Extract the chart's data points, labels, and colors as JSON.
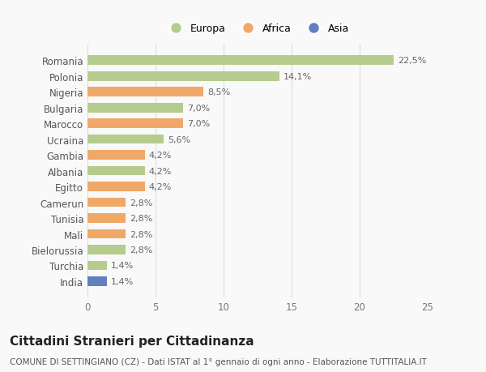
{
  "countries": [
    "Romania",
    "Polonia",
    "Nigeria",
    "Bulgaria",
    "Marocco",
    "Ucraina",
    "Gambia",
    "Albania",
    "Egitto",
    "Camerun",
    "Tunisia",
    "Mali",
    "Bielorussia",
    "Turchia",
    "India"
  ],
  "values": [
    22.5,
    14.1,
    8.5,
    7.0,
    7.0,
    5.6,
    4.2,
    4.2,
    4.2,
    2.8,
    2.8,
    2.8,
    2.8,
    1.4,
    1.4
  ],
  "labels": [
    "22,5%",
    "14,1%",
    "8,5%",
    "7,0%",
    "7,0%",
    "5,6%",
    "4,2%",
    "4,2%",
    "4,2%",
    "2,8%",
    "2,8%",
    "2,8%",
    "2,8%",
    "1,4%",
    "1,4%"
  ],
  "continents": [
    "Europa",
    "Europa",
    "Africa",
    "Europa",
    "Africa",
    "Europa",
    "Africa",
    "Europa",
    "Africa",
    "Africa",
    "Africa",
    "Africa",
    "Europa",
    "Europa",
    "Asia"
  ],
  "colors": {
    "Europa": "#b5cc8e",
    "Africa": "#f0a868",
    "Asia": "#6080c0"
  },
  "legend_labels": [
    "Europa",
    "Africa",
    "Asia"
  ],
  "xlim": [
    0,
    25
  ],
  "xticks": [
    0,
    5,
    10,
    15,
    20,
    25
  ],
  "title": "Cittadini Stranieri per Cittadinanza",
  "subtitle": "COMUNE DI SETTINGIANO (CZ) - Dati ISTAT al 1° gennaio di ogni anno - Elaborazione TUTTITALIA.IT",
  "bg_color": "#f9f9f9",
  "grid_color": "#dddddd",
  "bar_height": 0.6,
  "title_fontsize": 11,
  "subtitle_fontsize": 7.5,
  "label_fontsize": 8,
  "tick_fontsize": 8.5,
  "legend_fontsize": 9
}
